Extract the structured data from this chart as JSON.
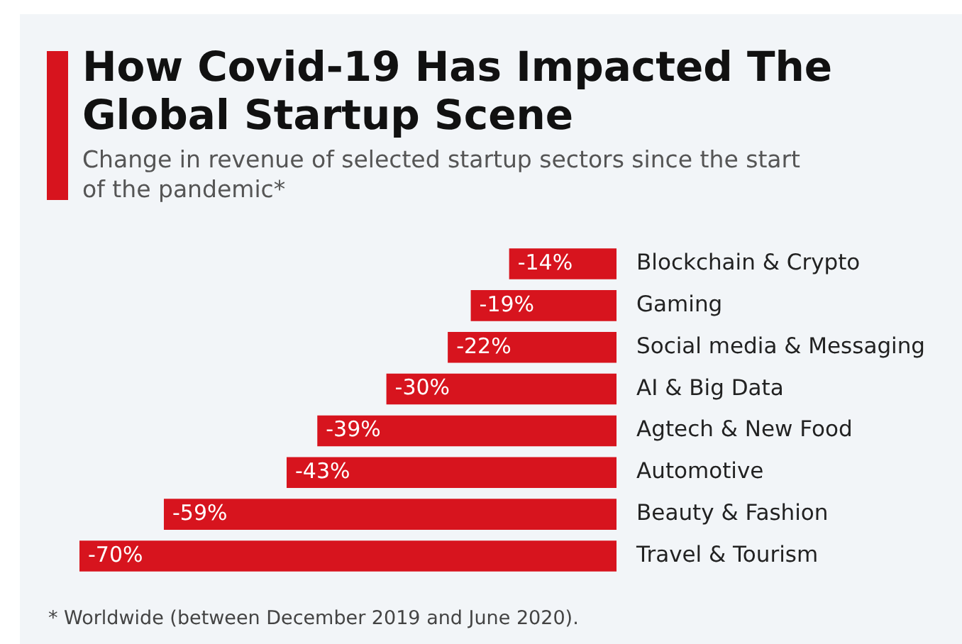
{
  "chart_data": {
    "type": "bar",
    "orientation": "horizontal",
    "title": "How Covid-19 Has Impacted The Global Startup Scene",
    "subtitle": "Change in revenue of selected startup sectors since the start of the pandemic*",
    "categories": [
      "Blockchain & Crypto",
      "Gaming",
      "Social media & Messaging",
      "AI & Big Data",
      "Agtech & New Food",
      "Automotive",
      "Beauty & Fashion",
      "Travel & Tourism"
    ],
    "values": [
      -14,
      -19,
      -22,
      -30,
      -39,
      -43,
      -59,
      -70
    ],
    "value_labels": [
      "-14%",
      "-19%",
      "-22%",
      "-30%",
      "-39%",
      "-43%",
      "-59%",
      "-70%"
    ],
    "color": "#d7141e",
    "xlim": [
      -70,
      0
    ],
    "annotations": [
      "* Worldwide (between December 2019 and June 2020)."
    ]
  }
}
